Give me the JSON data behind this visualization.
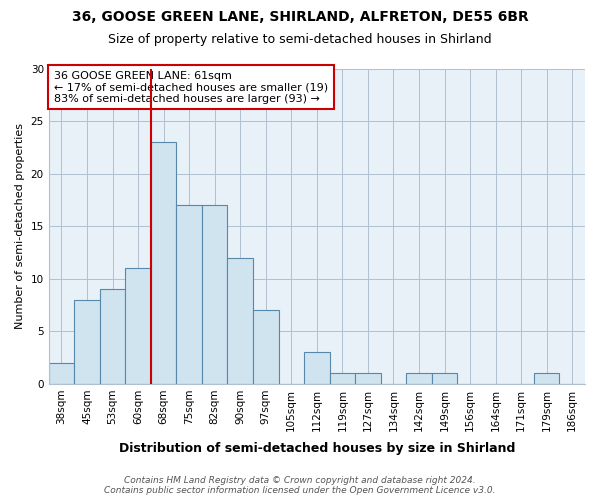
{
  "title1": "36, GOOSE GREEN LANE, SHIRLAND, ALFRETON, DE55 6BR",
  "title2": "Size of property relative to semi-detached houses in Shirland",
  "xlabel": "Distribution of semi-detached houses by size in Shirland",
  "ylabel": "Number of semi-detached properties",
  "categories": [
    "38sqm",
    "45sqm",
    "53sqm",
    "60sqm",
    "68sqm",
    "75sqm",
    "82sqm",
    "90sqm",
    "97sqm",
    "105sqm",
    "112sqm",
    "119sqm",
    "127sqm",
    "134sqm",
    "142sqm",
    "149sqm",
    "156sqm",
    "164sqm",
    "171sqm",
    "179sqm",
    "186sqm"
  ],
  "values": [
    2,
    8,
    9,
    11,
    23,
    17,
    17,
    12,
    7,
    0,
    3,
    1,
    1,
    0,
    1,
    1,
    0,
    0,
    0,
    1,
    0
  ],
  "bar_color": "#d0e4f0",
  "bar_edge_color": "#5588aa",
  "vline_x": 3.5,
  "vline_color": "#cc0000",
  "annotation_text": "36 GOOSE GREEN LANE: 61sqm\n← 17% of semi-detached houses are smaller (19)\n83% of semi-detached houses are larger (93) →",
  "annotation_box_color": "white",
  "annotation_box_edge": "#cc0000",
  "ylim": [
    0,
    30
  ],
  "yticks": [
    0,
    5,
    10,
    15,
    20,
    25,
    30
  ],
  "footer": "Contains HM Land Registry data © Crown copyright and database right 2024.\nContains public sector information licensed under the Open Government Licence v3.0.",
  "background_color": "white",
  "plot_bg_color": "#e8f0f8",
  "grid_color": "#b0c0d0",
  "title1_fontsize": 10,
  "title2_fontsize": 9,
  "xlabel_fontsize": 9,
  "ylabel_fontsize": 8,
  "tick_fontsize": 7.5,
  "ann_fontsize": 8,
  "footer_fontsize": 6.5
}
